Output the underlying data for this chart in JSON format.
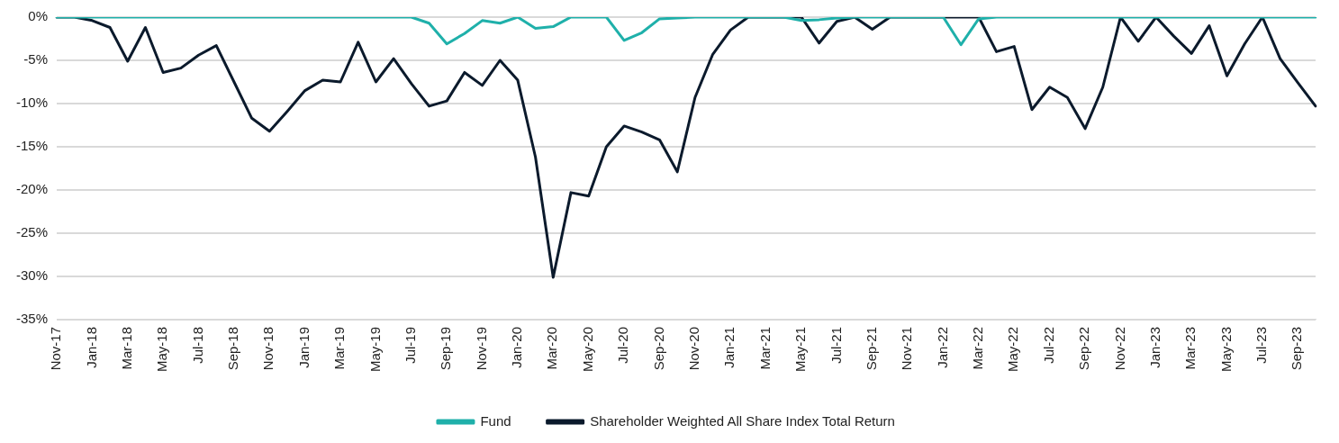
{
  "chart_data": {
    "type": "line",
    "categories": [
      "Nov-17",
      null,
      "Jan-18",
      null,
      "Mar-18",
      null,
      "May-18",
      null,
      "Jul-18",
      null,
      "Sep-18",
      null,
      "Nov-18",
      null,
      "Jan-19",
      null,
      "Mar-19",
      null,
      "May-19",
      null,
      "Jul-19",
      null,
      "Sep-19",
      null,
      "Nov-19",
      null,
      "Jan-20",
      null,
      "Mar-20",
      null,
      "May-20",
      null,
      "Jul-20",
      null,
      "Sep-20",
      null,
      "Nov-20",
      null,
      "Jan-21",
      null,
      "Mar-21",
      null,
      "May-21",
      null,
      "Jul-21",
      null,
      "Sep-21",
      null,
      "Nov-21",
      null,
      "Jan-22",
      null,
      "Mar-22",
      null,
      "May-22",
      null,
      "Jul-22",
      null,
      "Sep-22",
      null,
      "Nov-22",
      null,
      "Jan-23",
      null,
      "Mar-23",
      null,
      "May-23",
      null,
      "Jul-23",
      null,
      "Sep-23",
      null
    ],
    "series": [
      {
        "name": "Fund",
        "color": "#1fb0aa",
        "values": [
          0,
          0,
          0,
          0,
          0,
          0,
          0,
          0,
          0,
          0,
          0,
          0,
          0,
          0,
          0,
          0,
          0,
          0,
          0,
          0,
          0,
          -0.7,
          -3.1,
          -1.9,
          -0.4,
          -0.7,
          0,
          -1.3,
          -1.1,
          0,
          0,
          0,
          -2.7,
          -1.8,
          -0.2,
          -0.1,
          0,
          0,
          0,
          0,
          0,
          0,
          -0.4,
          -0.3,
          -0.1,
          0,
          0,
          0,
          0,
          0,
          0,
          -3.2,
          -0.2,
          0,
          0,
          0,
          0,
          0,
          0,
          0,
          0,
          0,
          0,
          0,
          0,
          0,
          0,
          0,
          0,
          0,
          0,
          0
        ]
      },
      {
        "name": "Shareholder Weighted All Share Index Total Return",
        "color": "#0b1a2c",
        "values": [
          0,
          0,
          -0.4,
          -1.2,
          -5.1,
          -1.2,
          -6.4,
          -5.9,
          -4.4,
          -3.3,
          -7.5,
          -11.7,
          -13.2,
          -10.9,
          -8.5,
          -7.3,
          -7.5,
          -2.9,
          -7.5,
          -4.8,
          -7.7,
          -10.3,
          -9.7,
          -6.4,
          -7.9,
          -5.0,
          -7.3,
          -16.2,
          -30.1,
          -20.3,
          -20.7,
          -15.0,
          -12.6,
          -13.3,
          -14.2,
          -17.9,
          -9.3,
          -4.3,
          -1.5,
          0,
          0,
          0,
          0,
          -3.0,
          -0.5,
          0,
          -1.4,
          0,
          0,
          0,
          0,
          0,
          0,
          -4.0,
          -3.4,
          -10.7,
          -8.1,
          -9.3,
          -12.9,
          -8.1,
          0,
          -2.8,
          0,
          -2.2,
          -4.2,
          -1.0,
          -6.8,
          -3.1,
          0,
          -4.8,
          -7.6,
          -10.3
        ]
      }
    ],
    "ylim": [
      -35,
      0
    ],
    "yticks": [
      {
        "value": -35,
        "label": "-35%"
      },
      {
        "value": -30,
        "label": "-30%"
      },
      {
        "value": -25,
        "label": "-25%"
      },
      {
        "value": -20,
        "label": "-20%"
      },
      {
        "value": -15,
        "label": "-15%"
      },
      {
        "value": -10,
        "label": "-10%"
      },
      {
        "value": -5,
        "label": "-5%"
      },
      {
        "value": 0,
        "label": "0%"
      }
    ],
    "grid": "y",
    "legend": "bottom"
  }
}
